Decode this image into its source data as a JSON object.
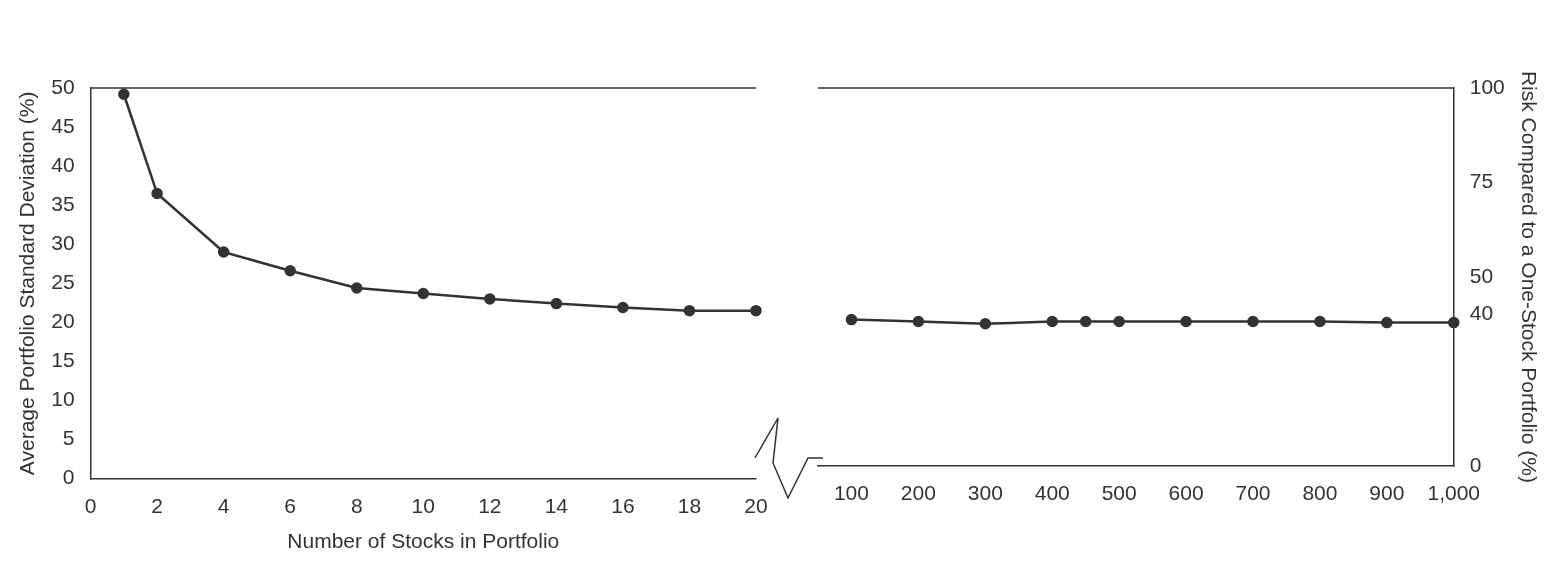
{
  "chart_data": [
    {
      "type": "line",
      "xlabel": "Number of Stocks in Portfolio",
      "ylabel": "Average Portfolio Standard Deviation (%)",
      "x": [
        1,
        2,
        4,
        6,
        8,
        10,
        12,
        14,
        16,
        18,
        20
      ],
      "series": [
        {
          "color": "#333333",
          "values": [
            49.2,
            36.5,
            29.0,
            26.6,
            24.4,
            23.7,
            23.0,
            22.4,
            21.9,
            21.5,
            21.5
          ]
        }
      ],
      "xlim": [
        0,
        20
      ],
      "xticks": [
        0,
        2,
        4,
        6,
        8,
        10,
        12,
        14,
        16,
        18,
        20
      ],
      "ylim": [
        0,
        50
      ],
      "yticks": [
        0,
        5,
        10,
        15,
        20,
        25,
        30,
        35,
        40,
        45,
        50
      ],
      "marker": "circle"
    },
    {
      "type": "line",
      "y2label": "Risk Compared to a One-Stock Portfolio (%)",
      "x": [
        100,
        200,
        300,
        400,
        450,
        500,
        600,
        700,
        800,
        900,
        1000
      ],
      "series": [
        {
          "color": "#333333",
          "axis": "y2",
          "values": [
            38.7,
            38.2,
            37.6,
            38.2,
            38.2,
            38.2,
            38.2,
            38.2,
            38.2,
            37.9,
            37.9
          ]
        }
      ],
      "xlim": [
        50,
        1000
      ],
      "xticks": [
        100,
        200,
        300,
        400,
        500,
        600,
        700,
        800,
        900,
        {
          "value": 1000,
          "label": "1,000"
        }
      ],
      "y2lim": [
        0,
        100
      ],
      "y2ticks": [
        0,
        40,
        50,
        75,
        100
      ],
      "marker": "circle"
    }
  ]
}
